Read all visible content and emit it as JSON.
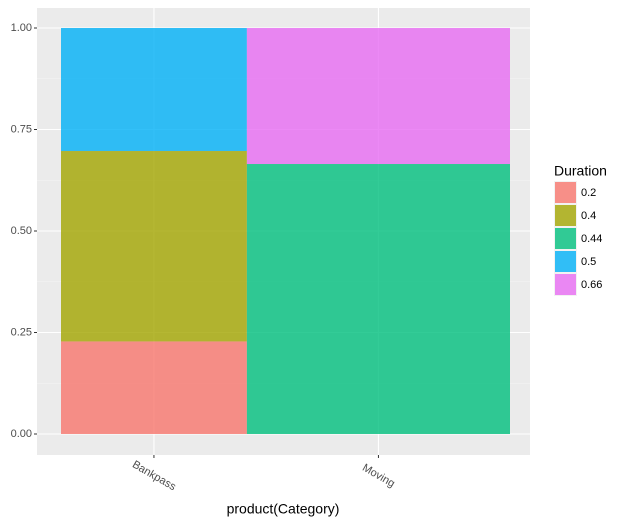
{
  "chart_data": {
    "type": "mosaic",
    "x_label": "product(Category)",
    "legend_title": "Duration",
    "categories": [
      "Bankpass",
      "Moving"
    ],
    "widths": [
      0.414,
      0.586
    ],
    "series": [
      {
        "name": "0.2",
        "color": "#F8766D",
        "values": [
          0.228,
          null
        ]
      },
      {
        "name": "0.4",
        "color": "#A3A500",
        "values": [
          0.469,
          null
        ]
      },
      {
        "name": "0.44",
        "color": "#00BF7D",
        "values": [
          null,
          0.665
        ]
      },
      {
        "name": "0.5",
        "color": "#00B0F6",
        "values": [
          0.303,
          null
        ]
      },
      {
        "name": "0.66",
        "color": "#E76BF3",
        "values": [
          null,
          0.335
        ]
      }
    ],
    "ylim": [
      0,
      1
    ],
    "yticks": [
      {
        "value": 0,
        "label": "0.00"
      },
      0.25,
      {
        "value": 0.5,
        "label": "0.50"
      },
      0.75,
      {
        "value": 1,
        "label": "1.00"
      }
    ],
    "grid": true
  }
}
